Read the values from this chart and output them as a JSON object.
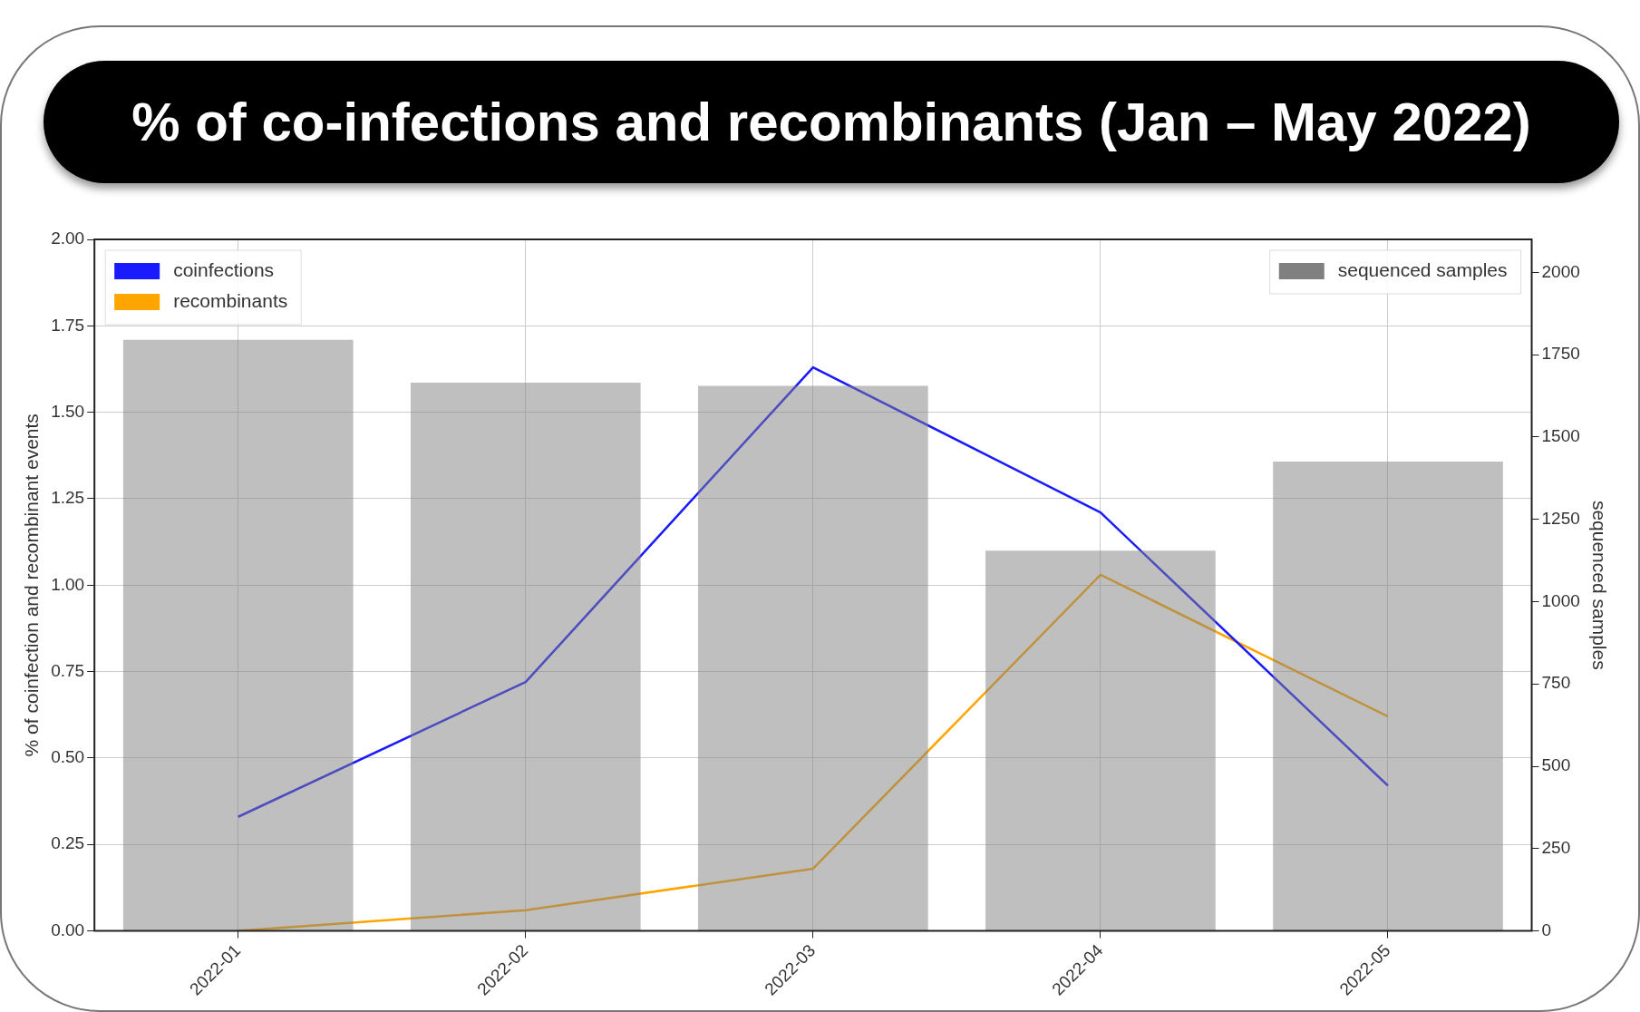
{
  "chart_data": {
    "type": "line",
    "title": "% of co-infections and recombinants (Jan – May 2022)",
    "categories": [
      "2022-01",
      "2022-02",
      "2022-03",
      "2022-04",
      "2022-05"
    ],
    "series": [
      {
        "name": "coinfections",
        "color": "#1a1aff",
        "values": [
          0.33,
          0.72,
          1.63,
          1.21,
          0.42
        ]
      },
      {
        "name": "recombinants",
        "color": "#ffa500",
        "values": [
          0.0,
          0.06,
          0.18,
          1.03,
          0.62
        ]
      },
      {
        "name": "sequenced samples",
        "type": "bar",
        "axis": "y2",
        "color": "#808080",
        "values": [
          1795,
          1665,
          1655,
          1155,
          1425
        ]
      }
    ],
    "ylabel": "% of coinfection and recombinant events",
    "y2label": "sequenced samples",
    "ylim": [
      0,
      2
    ],
    "yticks": [
      {
        "value": 0,
        "label": "0.00"
      },
      {
        "value": 0.25,
        "label": "0.25"
      },
      {
        "value": 0.5,
        "label": "0.50"
      },
      {
        "value": 0.75,
        "label": "0.75"
      },
      {
        "value": 1,
        "label": "1.00"
      },
      {
        "value": 1.25,
        "label": "1.25"
      },
      {
        "value": 1.5,
        "label": "1.50"
      },
      {
        "value": 1.75,
        "label": "1.75"
      },
      {
        "value": 2,
        "label": "2.00"
      }
    ],
    "y2lim": [
      0,
      2100
    ],
    "y2ticks": [
      0,
      250,
      500,
      750,
      1000,
      1250,
      1500,
      1750,
      2000
    ],
    "grid": true,
    "legend": "top left"
  }
}
